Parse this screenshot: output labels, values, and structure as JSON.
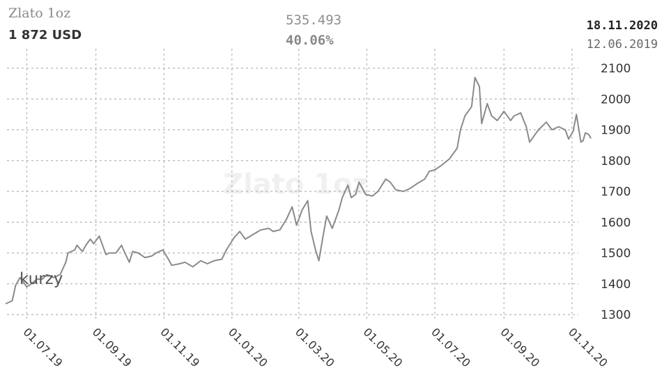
{
  "header": {
    "title": "Zlato 1oz",
    "price": "1 872 USD",
    "change_abs": "535.493",
    "change_pct": "40.06%",
    "date_end": "18.11.2020",
    "date_start": "12.06.2019"
  },
  "watermark": "Zlato 1oz",
  "logo": "kurzy",
  "colors": {
    "line": "#8a8a8a",
    "grid": "#b5b5b5",
    "text": "#333333"
  },
  "chart_data": {
    "type": "line",
    "title": "",
    "xlabel": "",
    "ylabel": "",
    "ylim": [
      1300,
      2100
    ],
    "yticks": [
      2100,
      2000,
      1900,
      1800,
      1700,
      1600,
      1500,
      1400,
      1300
    ],
    "xticks": [
      "01.07.19",
      "01.09.19",
      "01.11.19",
      "01.01.20",
      "01.03.20",
      "01.05.20",
      "01.07.20",
      "01.09.20",
      "01.11.20"
    ],
    "xlim": [
      "2019-06-12",
      "2020-11-18"
    ],
    "grid": true,
    "legend": "none",
    "series": [
      {
        "points": [
          [
            "2019-06-12",
            1335
          ],
          [
            "2019-06-18",
            1345
          ],
          [
            "2019-06-21",
            1395
          ],
          [
            "2019-06-25",
            1420
          ],
          [
            "2019-07-01",
            1390
          ],
          [
            "2019-07-05",
            1400
          ],
          [
            "2019-07-10",
            1415
          ],
          [
            "2019-07-15",
            1415
          ],
          [
            "2019-07-19",
            1430
          ],
          [
            "2019-07-25",
            1420
          ],
          [
            "2019-07-31",
            1430
          ],
          [
            "2019-08-05",
            1470
          ],
          [
            "2019-08-07",
            1500
          ],
          [
            "2019-08-13",
            1510
          ],
          [
            "2019-08-15",
            1525
          ],
          [
            "2019-08-20",
            1505
          ],
          [
            "2019-08-23",
            1525
          ],
          [
            "2019-08-27",
            1545
          ],
          [
            "2019-08-30",
            1530
          ],
          [
            "2019-09-04",
            1555
          ],
          [
            "2019-09-10",
            1495
          ],
          [
            "2019-09-13",
            1500
          ],
          [
            "2019-09-19",
            1500
          ],
          [
            "2019-09-24",
            1525
          ],
          [
            "2019-09-27",
            1500
          ],
          [
            "2019-10-01",
            1470
          ],
          [
            "2019-10-04",
            1505
          ],
          [
            "2019-10-09",
            1500
          ],
          [
            "2019-10-15",
            1485
          ],
          [
            "2019-10-21",
            1490
          ],
          [
            "2019-10-25",
            1500
          ],
          [
            "2019-10-31",
            1510
          ],
          [
            "2019-11-05",
            1480
          ],
          [
            "2019-11-08",
            1460
          ],
          [
            "2019-11-15",
            1465
          ],
          [
            "2019-11-20",
            1470
          ],
          [
            "2019-11-27",
            1455
          ],
          [
            "2019-12-04",
            1475
          ],
          [
            "2019-12-10",
            1465
          ],
          [
            "2019-12-16",
            1475
          ],
          [
            "2019-12-23",
            1480
          ],
          [
            "2019-12-27",
            1510
          ],
          [
            "2020-01-03",
            1550
          ],
          [
            "2020-01-08",
            1570
          ],
          [
            "2020-01-13",
            1545
          ],
          [
            "2020-01-20",
            1560
          ],
          [
            "2020-01-27",
            1575
          ],
          [
            "2020-02-03",
            1580
          ],
          [
            "2020-02-07",
            1570
          ],
          [
            "2020-02-13",
            1575
          ],
          [
            "2020-02-19",
            1610
          ],
          [
            "2020-02-24",
            1650
          ],
          [
            "2020-02-28",
            1590
          ],
          [
            "2020-03-04",
            1640
          ],
          [
            "2020-03-09",
            1670
          ],
          [
            "2020-03-12",
            1570
          ],
          [
            "2020-03-16",
            1510
          ],
          [
            "2020-03-19",
            1475
          ],
          [
            "2020-03-23",
            1560
          ],
          [
            "2020-03-26",
            1620
          ],
          [
            "2020-03-31",
            1580
          ],
          [
            "2020-04-06",
            1640
          ],
          [
            "2020-04-09",
            1680
          ],
          [
            "2020-04-14",
            1720
          ],
          [
            "2020-04-17",
            1680
          ],
          [
            "2020-04-21",
            1690
          ],
          [
            "2020-04-24",
            1730
          ],
          [
            "2020-04-30",
            1690
          ],
          [
            "2020-05-06",
            1685
          ],
          [
            "2020-05-11",
            1700
          ],
          [
            "2020-05-18",
            1740
          ],
          [
            "2020-05-22",
            1730
          ],
          [
            "2020-05-27",
            1705
          ],
          [
            "2020-06-03",
            1700
          ],
          [
            "2020-06-09",
            1710
          ],
          [
            "2020-06-15",
            1725
          ],
          [
            "2020-06-22",
            1740
          ],
          [
            "2020-06-26",
            1765
          ],
          [
            "2020-07-01",
            1770
          ],
          [
            "2020-07-07",
            1785
          ],
          [
            "2020-07-14",
            1805
          ],
          [
            "2020-07-21",
            1840
          ],
          [
            "2020-07-24",
            1900
          ],
          [
            "2020-07-28",
            1945
          ],
          [
            "2020-08-03",
            1975
          ],
          [
            "2020-08-06",
            2070
          ],
          [
            "2020-08-10",
            2040
          ],
          [
            "2020-08-12",
            1920
          ],
          [
            "2020-08-17",
            1985
          ],
          [
            "2020-08-21",
            1945
          ],
          [
            "2020-08-26",
            1930
          ],
          [
            "2020-09-01",
            1960
          ],
          [
            "2020-09-07",
            1930
          ],
          [
            "2020-09-10",
            1945
          ],
          [
            "2020-09-16",
            1955
          ],
          [
            "2020-09-21",
            1910
          ],
          [
            "2020-09-24",
            1860
          ],
          [
            "2020-09-29",
            1885
          ],
          [
            "2020-10-02",
            1900
          ],
          [
            "2020-10-09",
            1925
          ],
          [
            "2020-10-14",
            1900
          ],
          [
            "2020-10-20",
            1910
          ],
          [
            "2020-10-26",
            1900
          ],
          [
            "2020-10-29",
            1870
          ],
          [
            "2020-11-02",
            1895
          ],
          [
            "2020-11-05",
            1950
          ],
          [
            "2020-11-09",
            1860
          ],
          [
            "2020-11-11",
            1865
          ],
          [
            "2020-11-13",
            1890
          ],
          [
            "2020-11-16",
            1885
          ],
          [
            "2020-11-18",
            1872
          ]
        ]
      }
    ]
  }
}
